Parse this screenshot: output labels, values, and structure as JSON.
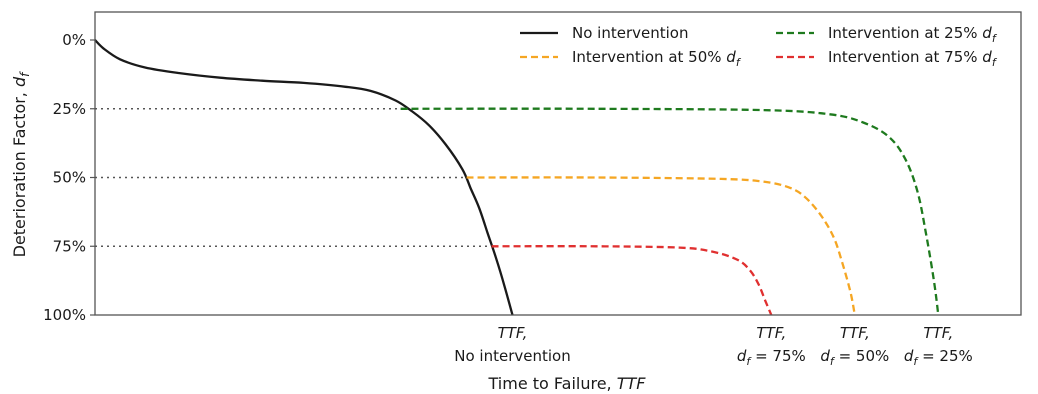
{
  "chart_data": {
    "type": "line",
    "xlabel": "Time to Failure, ",
    "xlabel_var": "TTF",
    "ylabel": "Deterioration Factor, ",
    "ylabel_var": "d",
    "ylabel_sub": "f",
    "yticks": [
      "0%",
      "25%",
      "50%",
      "75%",
      "100%"
    ],
    "ylim": [
      0,
      100
    ],
    "y_inverted": true,
    "xlim": [
      0,
      100
    ],
    "x_ticks_numeric": false,
    "grid": false,
    "legend_position": "top-right",
    "x_markers": [
      {
        "x": 50,
        "line1": "TTF,",
        "line2": "No intervention"
      },
      {
        "x": 81,
        "line1": "TTF,",
        "line2_var": "d",
        "line2_sub": "f",
        "line2_rest": " = 75%"
      },
      {
        "x": 91,
        "line1": "TTF,",
        "line2_var": "d",
        "line2_sub": "f",
        "line2_rest": " = 50%"
      },
      {
        "x": 101,
        "line1": "TTF,",
        "line2_var": "d",
        "line2_sub": "f",
        "line2_rest": " = 25%"
      }
    ],
    "reference_lines": [
      {
        "y": 25,
        "x_start": 0,
        "x_end": 36.6
      },
      {
        "y": 50,
        "x_start": 0,
        "x_end": 44.5
      },
      {
        "y": 75,
        "x_start": 0,
        "x_end": 47.5
      }
    ],
    "series": [
      {
        "name": "No intervention",
        "color": "#1a1a1a",
        "style": "solid",
        "x": [
          0,
          1,
          3,
          6,
          10,
          15,
          20,
          25,
          30,
          33,
          36,
          38,
          40,
          42,
          44,
          45,
          46,
          47,
          48,
          49,
          50
        ],
        "y": [
          0,
          3,
          7,
          10,
          12,
          13.7,
          14.8,
          15.6,
          17,
          18.5,
          22,
          26,
          31,
          38,
          47,
          54,
          61,
          70,
          79,
          89,
          100
        ]
      },
      {
        "name": "Intervention at 50% ",
        "name_var": "d",
        "name_sub": "f",
        "color": "#f5a623",
        "style": "dashed",
        "x": [
          44.5,
          60,
          75,
          80,
          83,
          85,
          87,
          88.5,
          89.5,
          90.5,
          91
        ],
        "y": [
          50,
          50,
          50.5,
          51.5,
          53.5,
          57,
          64,
          72,
          81,
          92,
          100
        ]
      },
      {
        "name": "Intervention at 25% ",
        "name_var": "d",
        "name_sub": "f",
        "color": "#1e7a1e",
        "style": "dashed",
        "x": [
          36.6,
          60,
          80,
          88,
          92,
          95,
          97,
          98.5,
          99.5,
          100.5,
          101
        ],
        "y": [
          25,
          25,
          25.5,
          27,
          30,
          35,
          43,
          55,
          70,
          88,
          100
        ]
      },
      {
        "name": "Intervention at 75% ",
        "name_var": "d",
        "name_sub": "f",
        "color": "#e03030",
        "style": "dashed",
        "x": [
          47.5,
          60,
          70,
          74,
          77,
          78.5,
          79.5,
          80.3,
          81
        ],
        "y": [
          75,
          75,
          75.5,
          77,
          80,
          84,
          89,
          95,
          100
        ]
      }
    ]
  }
}
